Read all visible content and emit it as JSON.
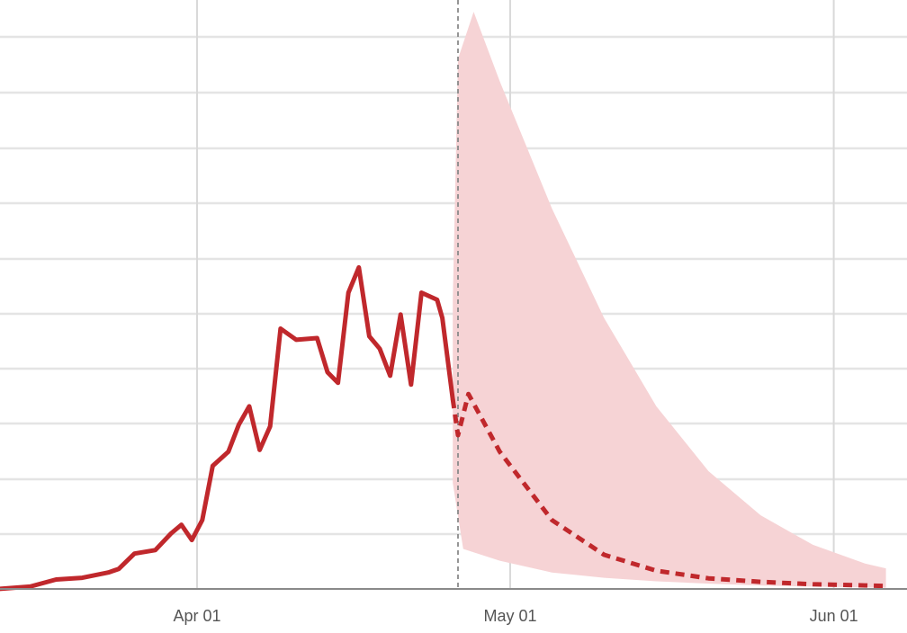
{
  "chart_data": {
    "type": "line",
    "title": "",
    "xlabel": "",
    "ylabel": "",
    "x_ticks": [
      {
        "label": "Apr 01",
        "day": 31
      },
      {
        "label": "May 01",
        "day": 61
      },
      {
        "label": "Jun 01",
        "day": 92
      }
    ],
    "grid": true,
    "y_range": [
      0,
      1
    ],
    "forecast_start_day": 56,
    "colors": {
      "observed": "#c0282c",
      "forecast": "#c0282c",
      "band": "#f6d3d5",
      "forecast_marker": "#8a8a8a"
    },
    "series": [
      {
        "style": "solid",
        "role": "observed",
        "points": [
          [
            12,
            0
          ],
          [
            15,
            0.004
          ],
          [
            17.5,
            0.016
          ],
          [
            20,
            0.019
          ],
          [
            22.5,
            0.028
          ],
          [
            23.5,
            0.034
          ],
          [
            25,
            0.06
          ],
          [
            27,
            0.066
          ],
          [
            28.5,
            0.094
          ],
          [
            29.5,
            0.109
          ],
          [
            30.5,
            0.083
          ],
          [
            31.5,
            0.117
          ],
          [
            32.5,
            0.209
          ],
          [
            34,
            0.233
          ],
          [
            35,
            0.279
          ],
          [
            36,
            0.31
          ],
          [
            37,
            0.236
          ],
          [
            38,
            0.276
          ],
          [
            39,
            0.442
          ],
          [
            40.5,
            0.423
          ],
          [
            42.5,
            0.426
          ],
          [
            43.5,
            0.368
          ],
          [
            44.5,
            0.35
          ],
          [
            45.5,
            0.503
          ],
          [
            46.5,
            0.546
          ],
          [
            47.5,
            0.429
          ],
          [
            48.5,
            0.408
          ],
          [
            49.5,
            0.362
          ],
          [
            50.5,
            0.466
          ],
          [
            51.5,
            0.347
          ],
          [
            52.5,
            0.503
          ],
          [
            54,
            0.491
          ],
          [
            54.5,
            0.46
          ],
          [
            55.5,
            0.322
          ]
        ]
      },
      {
        "style": "dashed",
        "role": "forecast",
        "points": [
          [
            55.5,
            0.322
          ],
          [
            56,
            0.261
          ],
          [
            57,
            0.331
          ],
          [
            60,
            0.233
          ],
          [
            65,
            0.117
          ],
          [
            70,
            0.058
          ],
          [
            75,
            0.031
          ],
          [
            80,
            0.018
          ],
          [
            85,
            0.012
          ],
          [
            90,
            0.008
          ],
          [
            95,
            0.006
          ],
          [
            97,
            0.005
          ]
        ]
      }
    ],
    "band": {
      "upper": [
        [
          55.5,
          0.49
        ],
        [
          56,
          0.9
        ],
        [
          57.5,
          0.98
        ],
        [
          60,
          0.862
        ],
        [
          65,
          0.646
        ],
        [
          70,
          0.46
        ],
        [
          75,
          0.31
        ],
        [
          80,
          0.2
        ],
        [
          85,
          0.125
        ],
        [
          90,
          0.075
        ],
        [
          95,
          0.043
        ],
        [
          97,
          0.035
        ]
      ],
      "lower": [
        [
          97,
          0.002
        ],
        [
          90,
          0.004
        ],
        [
          85,
          0.006
        ],
        [
          80,
          0.009
        ],
        [
          75,
          0.013
        ],
        [
          70,
          0.019
        ],
        [
          65,
          0.028
        ],
        [
          60,
          0.048
        ],
        [
          56.5,
          0.068
        ],
        [
          55.5,
          0.18
        ]
      ]
    }
  }
}
